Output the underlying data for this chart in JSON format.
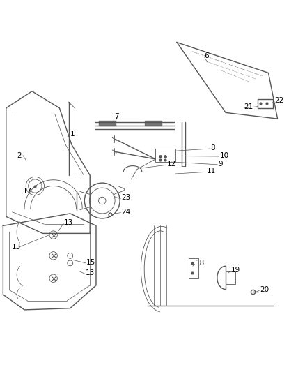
{
  "bg_color": "#ffffff",
  "line_color": "#555555",
  "label_color": "#000000",
  "label_fontsize": 7.5
}
